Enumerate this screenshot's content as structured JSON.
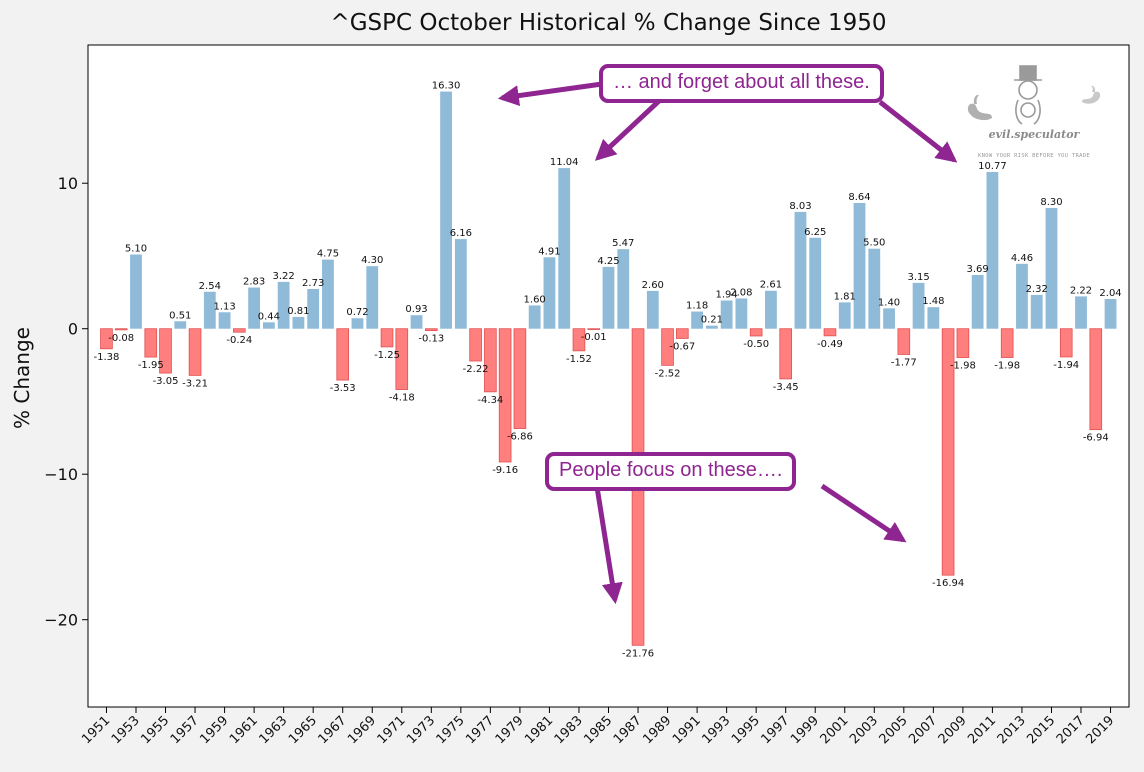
{
  "colors": {
    "positive": "#8fbbd9",
    "negative": "#ff7f7f",
    "callout": "#8e2590",
    "background": "#f2f2f2",
    "plot_background": "#ffffff"
  },
  "watermark": {
    "name": "evil.speculator",
    "tagline": "KNOW YOUR RISK BEFORE YOU TRADE",
    "icons": [
      "swan-icon",
      "top-hat-figure-icon",
      "swan-icon"
    ]
  },
  "annotations": {
    "top": "… and forget about all these.",
    "bottom": "People focus on these…."
  },
  "chart_data": {
    "type": "bar",
    "title": "^GSPC October Historical % Change Since 1950",
    "ylabel": "% Change",
    "xlabel": "",
    "ylim": [
      -26,
      19.5
    ],
    "xlim": [
      1949.75,
      2020.25
    ],
    "yticks": [
      -20,
      -10,
      0,
      10
    ],
    "ytick_labels": [
      "−20",
      "−10",
      "0",
      "10"
    ],
    "xticks": [
      1951,
      1953,
      1955,
      1957,
      1959,
      1961,
      1963,
      1965,
      1967,
      1969,
      1971,
      1973,
      1975,
      1977,
      1979,
      1981,
      1983,
      1985,
      1987,
      1989,
      1991,
      1993,
      1995,
      1997,
      1999,
      2001,
      2003,
      2005,
      2007,
      2009,
      2011,
      2013,
      2015,
      2017,
      2019
    ],
    "grid": false,
    "legend": "none",
    "categories": [
      1951,
      1952,
      1953,
      1954,
      1955,
      1956,
      1957,
      1958,
      1959,
      1960,
      1961,
      1962,
      1963,
      1964,
      1965,
      1966,
      1967,
      1968,
      1969,
      1970,
      1971,
      1972,
      1973,
      1974,
      1975,
      1976,
      1977,
      1978,
      1979,
      1980,
      1981,
      1982,
      1983,
      1984,
      1985,
      1986,
      1987,
      1988,
      1989,
      1990,
      1991,
      1992,
      1993,
      1994,
      1995,
      1996,
      1997,
      1998,
      1999,
      2000,
      2001,
      2002,
      2003,
      2004,
      2005,
      2006,
      2007,
      2008,
      2009,
      2010,
      2011,
      2012,
      2013,
      2014,
      2015,
      2016,
      2017,
      2018,
      2019
    ],
    "values": [
      -1.38,
      -0.08,
      5.1,
      -1.95,
      -3.05,
      0.51,
      -3.21,
      2.54,
      1.13,
      -0.24,
      2.83,
      0.44,
      3.22,
      0.81,
      2.73,
      4.75,
      -3.53,
      0.72,
      4.3,
      -1.25,
      -4.18,
      0.93,
      -0.13,
      16.3,
      6.16,
      -2.22,
      -4.34,
      -9.16,
      -6.86,
      1.6,
      4.91,
      11.04,
      -1.52,
      -0.01,
      4.25,
      5.47,
      -21.76,
      2.6,
      -2.52,
      -0.67,
      1.18,
      0.21,
      1.94,
      2.08,
      -0.5,
      2.61,
      -3.45,
      8.03,
      6.25,
      -0.49,
      1.81,
      8.64,
      5.5,
      1.4,
      -1.77,
      3.15,
      1.48,
      -16.94,
      -1.98,
      3.69,
      10.77,
      -1.98,
      4.46,
      2.32,
      8.3,
      -1.94,
      2.22,
      -6.94,
      2.04
    ],
    "data_labels": [
      "-1.38",
      "-0.08",
      "5.10",
      "-1.95",
      "-3.05",
      "0.51",
      "-3.21",
      "2.54",
      "1.13",
      "-0.24",
      "2.83",
      "0.44",
      "3.22",
      "0.81",
      "2.73",
      "4.75",
      "-3.53",
      "0.72",
      "4.30",
      "-1.25",
      "-4.18",
      "0.93",
      "-0.13",
      "16.30",
      "6.16",
      "-2.22",
      "-4.34",
      "-9.16",
      "-6.86",
      "1.60",
      "4.91",
      "11.04",
      "-1.52",
      "-0.01",
      "4.25",
      "5.47",
      "-21.76",
      "2.60",
      "-2.52",
      "-0.67",
      "1.18",
      "0.21",
      "1.94",
      "2.08",
      "-0.50",
      "2.61",
      "-3.45",
      "8.03",
      "6.25",
      "-0.49",
      "1.81",
      "8.64",
      "5.50",
      "1.40",
      "-1.77",
      "3.15",
      "1.48",
      "-16.94",
      "-1.98",
      "3.69",
      "10.77",
      "-1.98",
      "4.46",
      "2.32",
      "8.30",
      "-1.94",
      "2.22",
      "-6.94",
      "2.04"
    ]
  }
}
